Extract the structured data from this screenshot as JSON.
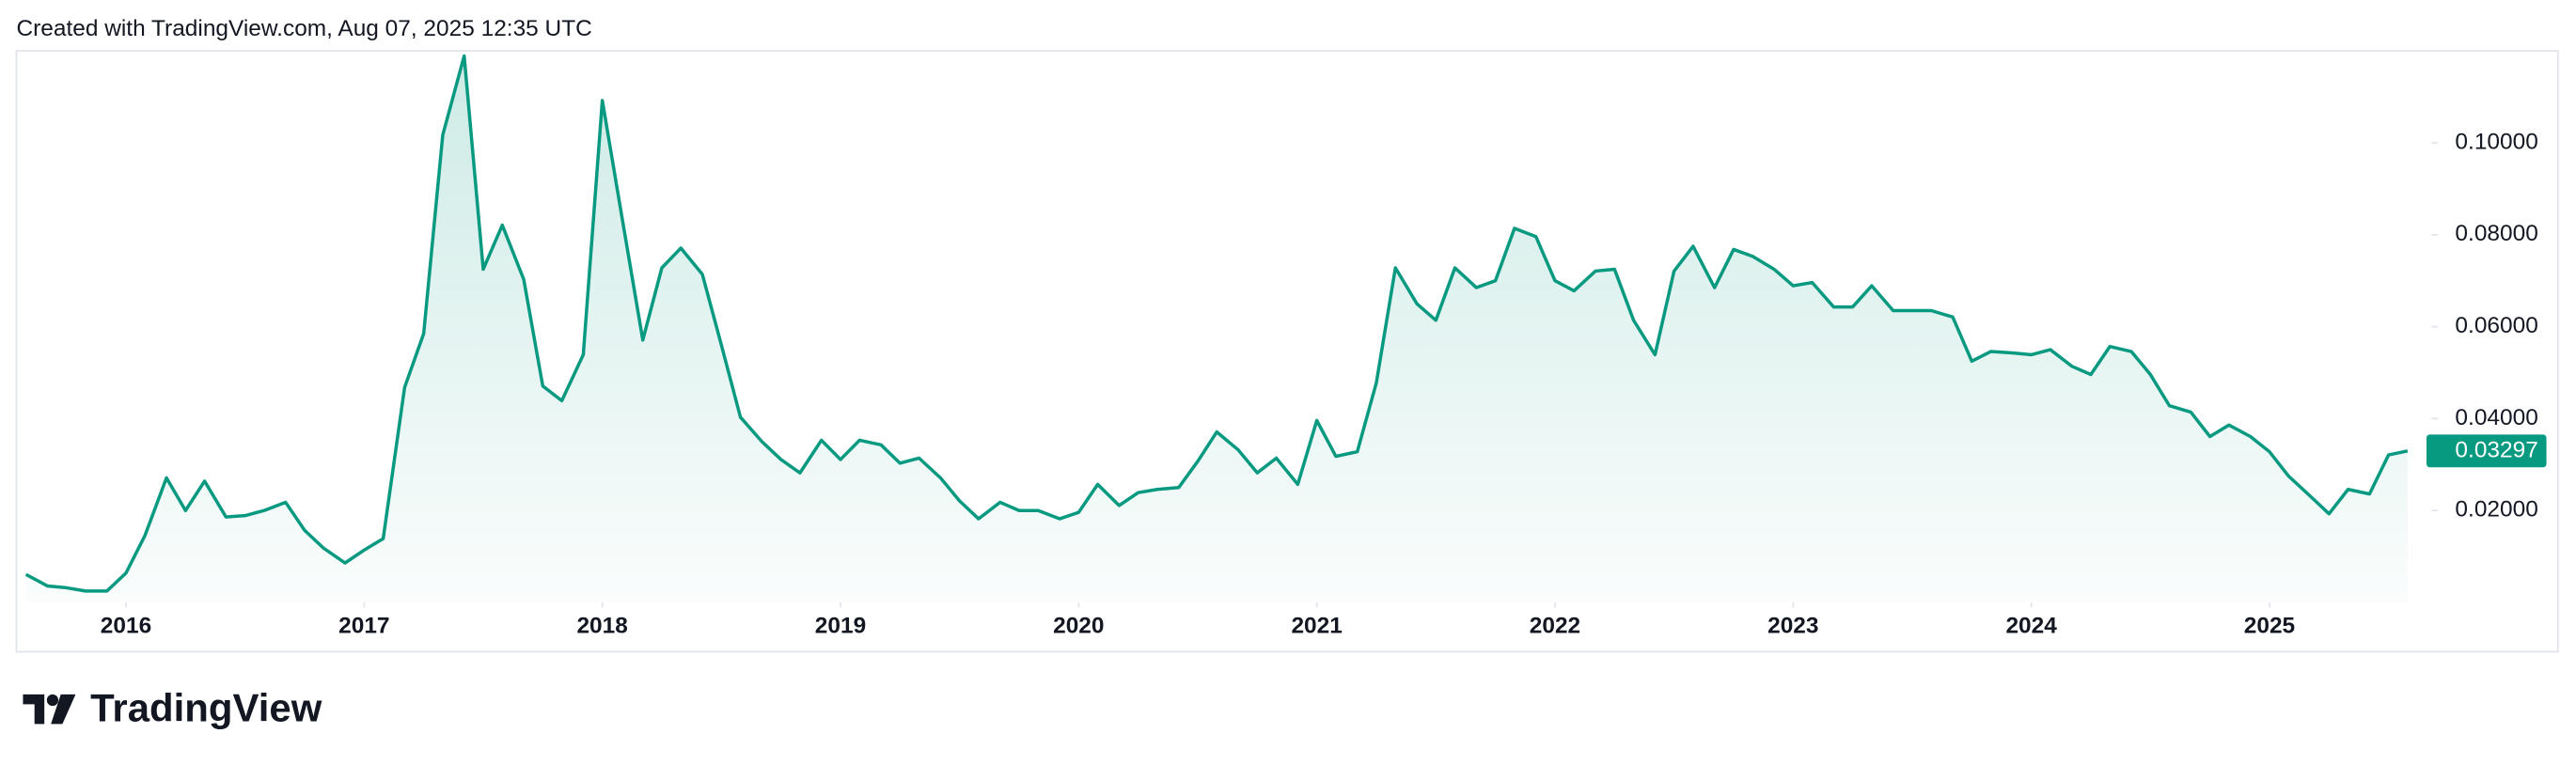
{
  "header": {
    "caption": "Created with TradingView.com, Aug 07, 2025 12:35 UTC"
  },
  "footer": {
    "logo": "TradingView"
  },
  "chart_data": {
    "type": "area",
    "x": [
      2015.58,
      2015.67,
      2015.75,
      2015.83,
      2015.92,
      2016.0,
      2016.08,
      2016.17,
      2016.25,
      2016.33,
      2016.42,
      2016.5,
      2016.58,
      2016.67,
      2016.75,
      2016.83,
      2016.92,
      2017.0,
      2017.08,
      2017.17,
      2017.25,
      2017.33,
      2017.42,
      2017.5,
      2017.58,
      2017.67,
      2017.75,
      2017.83,
      2017.92,
      2018.0,
      2018.08,
      2018.17,
      2018.25,
      2018.33,
      2018.42,
      2018.5,
      2018.58,
      2018.67,
      2018.75,
      2018.83,
      2018.92,
      2019.0,
      2019.08,
      2019.17,
      2019.25,
      2019.33,
      2019.42,
      2019.5,
      2019.58,
      2019.67,
      2019.75,
      2019.83,
      2019.92,
      2020.0,
      2020.08,
      2020.17,
      2020.25,
      2020.33,
      2020.42,
      2020.5,
      2020.58,
      2020.67,
      2020.75,
      2020.83,
      2020.92,
      2021.0,
      2021.08,
      2021.17,
      2021.25,
      2021.33,
      2021.42,
      2021.5,
      2021.58,
      2021.67,
      2021.75,
      2021.83,
      2021.92,
      2022.0,
      2022.08,
      2022.17,
      2022.25,
      2022.33,
      2022.42,
      2022.5,
      2022.58,
      2022.67,
      2022.75,
      2022.83,
      2022.92,
      2023.0,
      2023.08,
      2023.17,
      2023.25,
      2023.33,
      2023.42,
      2023.5,
      2023.58,
      2023.67,
      2023.75,
      2023.83,
      2023.92,
      2024.0,
      2024.08,
      2024.17,
      2024.25,
      2024.33,
      2024.42,
      2024.5,
      2024.58,
      2024.67,
      2024.75,
      2024.83,
      2024.92,
      2025.0,
      2025.08,
      2025.17,
      2025.25,
      2025.33,
      2025.42,
      2025.5,
      2025.58
    ],
    "series": [
      {
        "color": "#089981",
        "values": [
          0.0061,
          0.0036,
          0.0032,
          0.0025,
          0.0025,
          0.0064,
          0.0146,
          0.0271,
          0.02,
          0.0264,
          0.0186,
          0.0189,
          0.02,
          0.0218,
          0.0157,
          0.0118,
          0.0086,
          0.0114,
          0.0139,
          0.0468,
          0.0585,
          0.1017,
          0.1189,
          0.0725,
          0.0821,
          0.0703,
          0.0471,
          0.0439,
          0.0539,
          0.1092,
          0.0846,
          0.0571,
          0.0728,
          0.0771,
          0.0714,
          0.056,
          0.0403,
          0.035,
          0.0311,
          0.0282,
          0.0353,
          0.0311,
          0.0353,
          0.0343,
          0.0303,
          0.0314,
          0.0271,
          0.0221,
          0.0182,
          0.0218,
          0.02,
          0.02,
          0.0182,
          0.0196,
          0.0257,
          0.0211,
          0.0239,
          0.0246,
          0.025,
          0.0307,
          0.0371,
          0.0332,
          0.0282,
          0.0314,
          0.0257,
          0.0396,
          0.0318,
          0.0328,
          0.0478,
          0.0728,
          0.065,
          0.0614,
          0.0728,
          0.0685,
          0.07,
          0.0814,
          0.0796,
          0.07,
          0.0678,
          0.0721,
          0.0725,
          0.0614,
          0.0539,
          0.0721,
          0.0775,
          0.0685,
          0.0768,
          0.0753,
          0.0725,
          0.0689,
          0.0696,
          0.0643,
          0.0643,
          0.0689,
          0.0635,
          0.0635,
          0.0635,
          0.0621,
          0.0525,
          0.0546,
          0.0543,
          0.0539,
          0.055,
          0.0514,
          0.0496,
          0.0557,
          0.0546,
          0.0496,
          0.0428,
          0.0414,
          0.0361,
          0.0386,
          0.0361,
          0.0328,
          0.0275,
          0.0232,
          0.0193,
          0.0246,
          0.0236,
          0.0321,
          0.03297
        ]
      }
    ],
    "xlim": [
      2015.54,
      2025.68
    ],
    "xticks": [
      2016,
      2017,
      2018,
      2019,
      2020,
      2021,
      2022,
      2023,
      2024,
      2025
    ],
    "ylim": [
      0,
      0.12
    ],
    "yticks": [
      {
        "value": 0.02,
        "label": "0.02000"
      },
      {
        "value": 0.04,
        "label": "0.04000"
      },
      {
        "value": 0.06,
        "label": "0.06000"
      },
      {
        "value": 0.08,
        "label": "0.08000"
      },
      {
        "value": 0.1,
        "label": "0.10000"
      }
    ],
    "grid": false
  }
}
